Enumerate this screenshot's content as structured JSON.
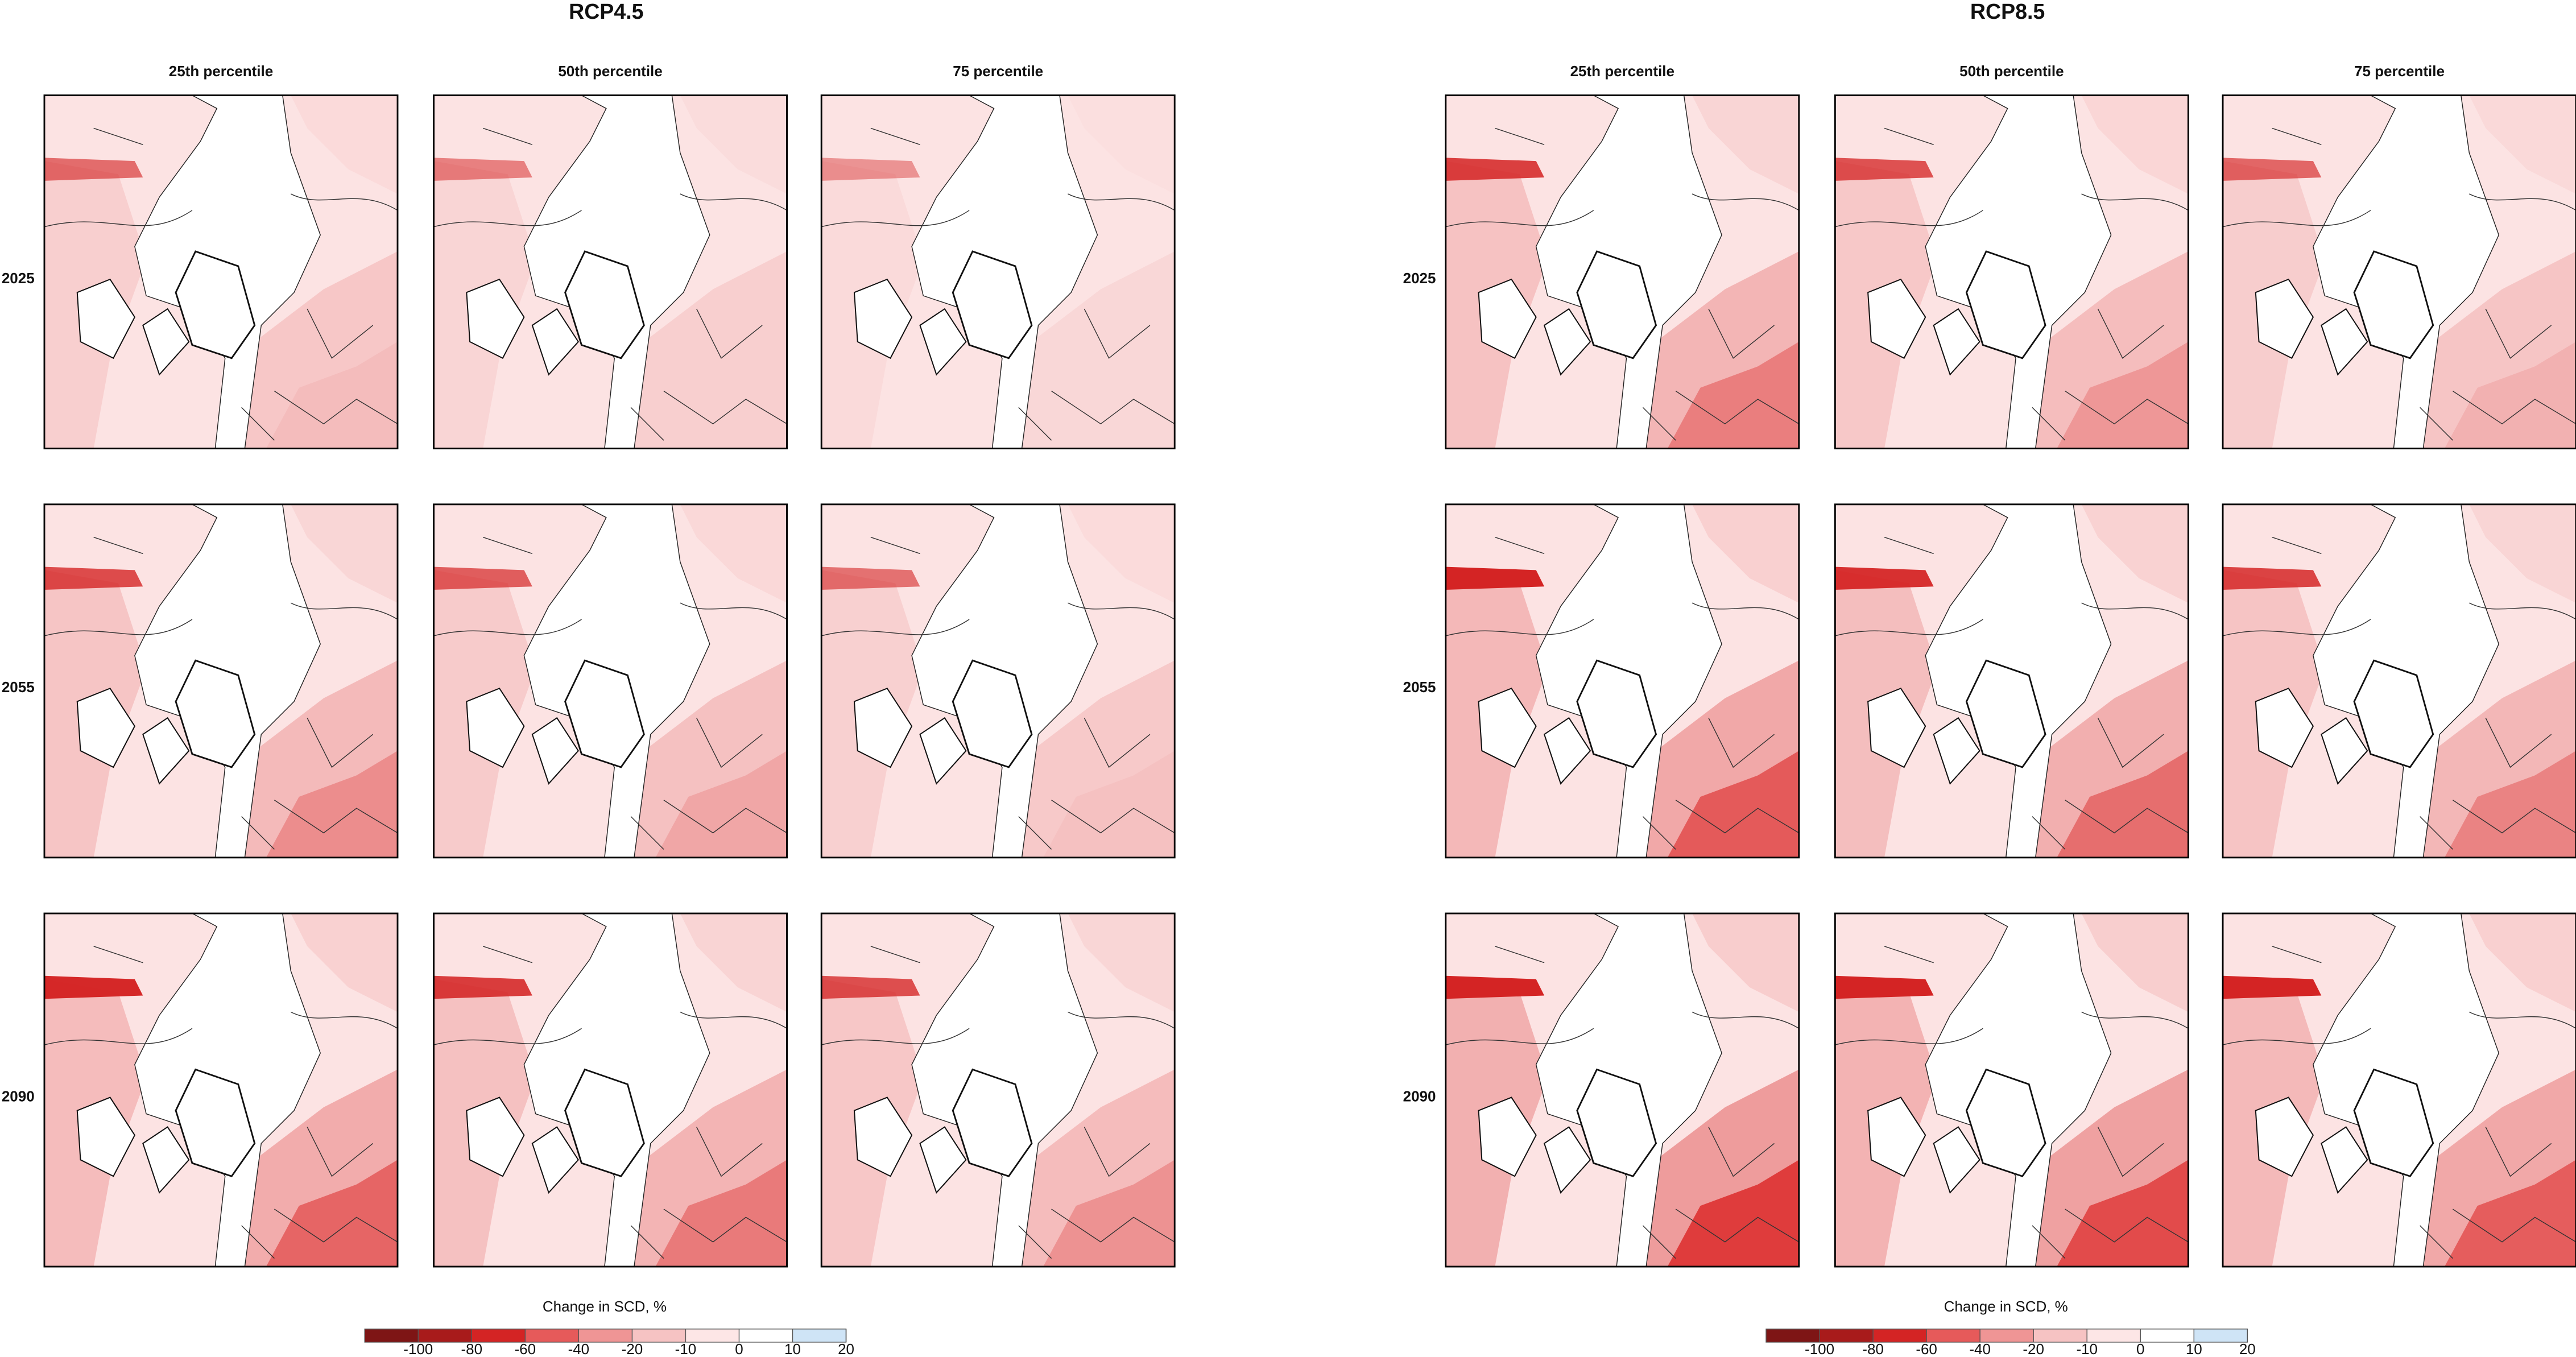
{
  "panels": [
    {
      "title": "RCP4.5",
      "columns": [
        "25th percentile",
        "50th percentile",
        "75 percentile"
      ],
      "rows": [
        "2025",
        "2055",
        "2090"
      ],
      "colorbar": {
        "label": "Change in SCD, %",
        "ticks": [
          -100,
          -80,
          -60,
          -40,
          -20,
          -10,
          0,
          10,
          20
        ],
        "colors": [
          "#7e1515",
          "#a81b1b",
          "#d42424",
          "#e65a5a",
          "#ef9595",
          "#f6c3c3",
          "#fde6e6",
          "#ffffff",
          "#cfe4f6"
        ]
      }
    },
    {
      "title": "RCP8.5",
      "columns": [
        "25th percentile",
        "50th percentile",
        "75 percentile"
      ],
      "rows": [
        "2025",
        "2055",
        "2090"
      ],
      "colorbar": {
        "label": "Change in SCD, %",
        "ticks": [
          -100,
          -80,
          -60,
          -40,
          -20,
          -10,
          0,
          10,
          20
        ],
        "colors": [
          "#7e1515",
          "#a81b1b",
          "#d42424",
          "#e65a5a",
          "#ef9595",
          "#f6c3c3",
          "#fde6e6",
          "#ffffff",
          "#cfe4f6"
        ]
      }
    }
  ]
}
